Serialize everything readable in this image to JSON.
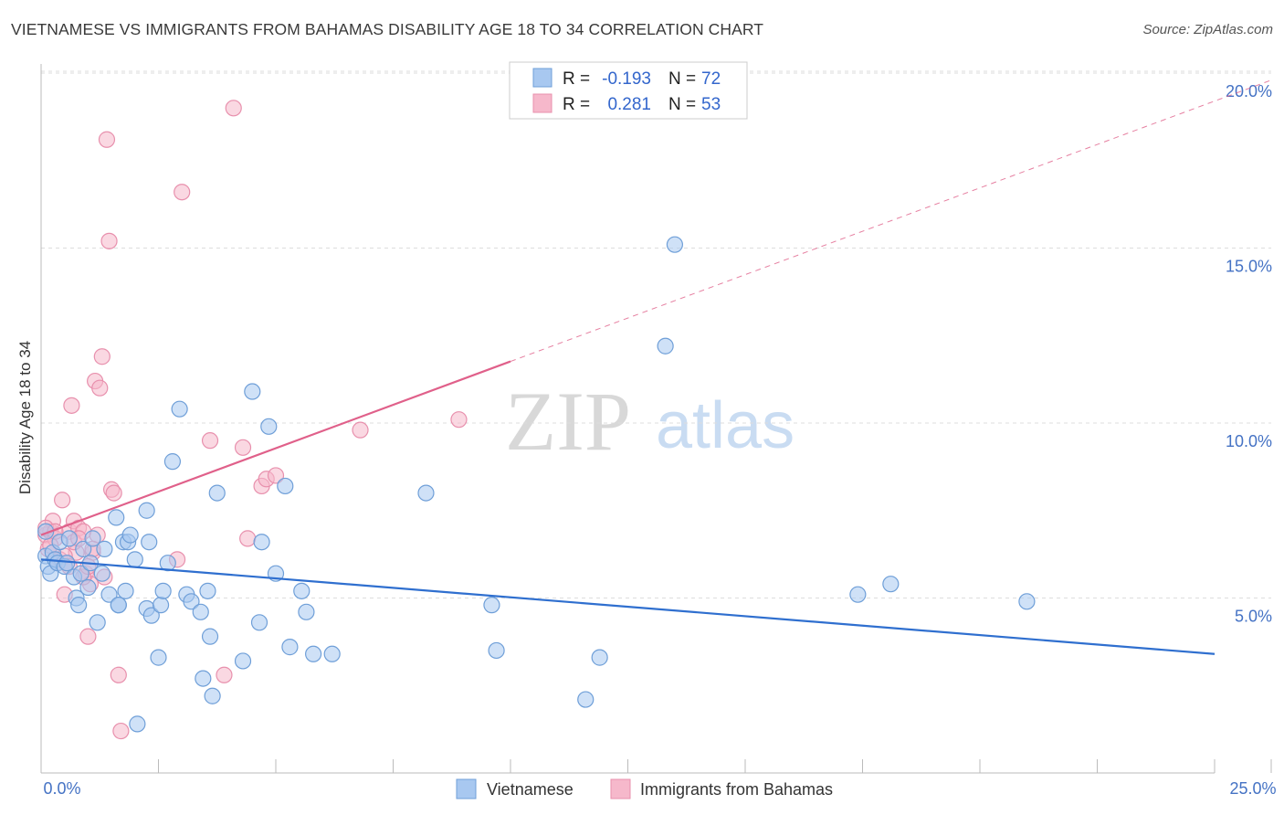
{
  "header": {
    "title": "VIETNAMESE VS IMMIGRANTS FROM BAHAMAS DISABILITY AGE 18 TO 34 CORRELATION CHART",
    "source": "Source: ZipAtlas.com"
  },
  "watermark": {
    "zip": "ZIP",
    "atlas": "atlas"
  },
  "colors": {
    "blue_fill": "#a8c8f0",
    "blue_stroke": "#6f9fd8",
    "blue_line": "#2f6fcf",
    "pink_fill": "#f6b8cb",
    "pink_stroke": "#e890ad",
    "pink_line": "#e0608a"
  },
  "chart_data": {
    "type": "scatter",
    "title": "VIETNAMESE VS IMMIGRANTS FROM BAHAMAS DISABILITY AGE 18 TO 34 CORRELATION CHART",
    "xlabel": "",
    "ylabel": "Disability Age 18 to 34",
    "xlim": [
      0,
      25
    ],
    "ylim": [
      0,
      20
    ],
    "x_tick_labels": [
      "0.0%",
      "25.0%"
    ],
    "y_ticks": [
      5,
      10,
      15,
      20
    ],
    "y_tick_labels": [
      "5.0%",
      "10.0%",
      "15.0%",
      "20.0%"
    ],
    "legend": [
      {
        "label": "Vietnamese",
        "r_label": "R =",
        "r_value": "-0.193",
        "n_label": "N =",
        "n_value": "72"
      },
      {
        "label": "Immigrants from Bahamas",
        "r_label": "R =",
        "r_value": "0.281",
        "n_label": "N =",
        "n_value": "53"
      }
    ],
    "series": [
      {
        "name": "Vietnamese",
        "trend": {
          "x0": 0,
          "y0": 6.1,
          "x1": 25,
          "y1": 3.4,
          "dashed_from": null
        },
        "points": [
          [
            0.1,
            6.2
          ],
          [
            0.15,
            5.9
          ],
          [
            0.2,
            5.7
          ],
          [
            0.25,
            6.3
          ],
          [
            0.3,
            6.1
          ],
          [
            0.35,
            6.0
          ],
          [
            0.4,
            6.6
          ],
          [
            0.5,
            5.9
          ],
          [
            0.55,
            6.0
          ],
          [
            0.6,
            6.7
          ],
          [
            0.7,
            5.6
          ],
          [
            0.75,
            5.0
          ],
          [
            0.8,
            4.8
          ],
          [
            0.85,
            5.7
          ],
          [
            0.9,
            6.4
          ],
          [
            1.0,
            5.3
          ],
          [
            1.05,
            6.0
          ],
          [
            1.1,
            6.7
          ],
          [
            1.2,
            4.3
          ],
          [
            1.3,
            5.7
          ],
          [
            1.35,
            6.4
          ],
          [
            1.45,
            5.1
          ],
          [
            1.6,
            7.3
          ],
          [
            1.65,
            4.8
          ],
          [
            1.75,
            6.6
          ],
          [
            1.8,
            5.2
          ],
          [
            1.85,
            6.6
          ],
          [
            1.9,
            6.8
          ],
          [
            2.05,
            1.4
          ],
          [
            2.25,
            4.7
          ],
          [
            2.25,
            7.5
          ],
          [
            2.3,
            6.6
          ],
          [
            2.35,
            4.5
          ],
          [
            2.5,
            3.3
          ],
          [
            2.55,
            4.8
          ],
          [
            2.6,
            5.2
          ],
          [
            2.7,
            6.0
          ],
          [
            2.8,
            8.9
          ],
          [
            2.95,
            10.4
          ],
          [
            3.1,
            5.1
          ],
          [
            3.2,
            4.9
          ],
          [
            3.4,
            4.6
          ],
          [
            3.45,
            2.7
          ],
          [
            3.55,
            5.2
          ],
          [
            3.6,
            3.9
          ],
          [
            3.65,
            2.2
          ],
          [
            3.75,
            8.0
          ],
          [
            4.3,
            3.2
          ],
          [
            4.5,
            10.9
          ],
          [
            4.65,
            4.3
          ],
          [
            4.7,
            6.6
          ],
          [
            4.85,
            9.9
          ],
          [
            5.0,
            5.7
          ],
          [
            5.2,
            8.2
          ],
          [
            5.3,
            3.6
          ],
          [
            5.55,
            5.2
          ],
          [
            5.65,
            4.6
          ],
          [
            5.8,
            3.4
          ],
          [
            6.2,
            3.4
          ],
          [
            8.2,
            8.0
          ],
          [
            9.6,
            4.8
          ],
          [
            9.7,
            3.5
          ],
          [
            11.6,
            2.1
          ],
          [
            11.9,
            3.3
          ],
          [
            13.5,
            15.1
          ],
          [
            13.3,
            12.2
          ],
          [
            17.4,
            5.1
          ],
          [
            18.1,
            5.4
          ],
          [
            21.0,
            4.9
          ],
          [
            0.1,
            6.9
          ],
          [
            1.65,
            4.8
          ],
          [
            2.0,
            6.1
          ]
        ]
      },
      {
        "name": "Immigrants from Bahamas",
        "trend": {
          "x0": 0,
          "y0": 6.8,
          "x1": 25,
          "y1": 19.2,
          "solid_until_x": 10
        },
        "points": [
          [
            0.1,
            6.8
          ],
          [
            0.15,
            6.4
          ],
          [
            0.2,
            6.9
          ],
          [
            0.25,
            7.2
          ],
          [
            0.3,
            6.7
          ],
          [
            0.35,
            6.0
          ],
          [
            0.4,
            6.1
          ],
          [
            0.45,
            7.8
          ],
          [
            0.5,
            5.1
          ],
          [
            0.55,
            6.0
          ],
          [
            0.6,
            6.9
          ],
          [
            0.65,
            10.5
          ],
          [
            0.7,
            7.2
          ],
          [
            0.75,
            6.3
          ],
          [
            0.8,
            7.0
          ],
          [
            0.9,
            6.9
          ],
          [
            0.95,
            5.7
          ],
          [
            1.0,
            3.9
          ],
          [
            1.05,
            5.4
          ],
          [
            1.1,
            6.3
          ],
          [
            1.15,
            11.2
          ],
          [
            1.2,
            6.8
          ],
          [
            1.25,
            11.0
          ],
          [
            1.3,
            11.9
          ],
          [
            1.35,
            5.6
          ],
          [
            1.4,
            18.1
          ],
          [
            1.45,
            15.2
          ],
          [
            1.5,
            8.1
          ],
          [
            1.55,
            8.0
          ],
          [
            1.65,
            2.8
          ],
          [
            1.7,
            1.2
          ],
          [
            2.9,
            6.1
          ],
          [
            3.0,
            16.6
          ],
          [
            3.6,
            9.5
          ],
          [
            3.9,
            2.8
          ],
          [
            4.1,
            19.0
          ],
          [
            4.3,
            9.3
          ],
          [
            4.4,
            6.7
          ],
          [
            4.7,
            8.2
          ],
          [
            4.8,
            8.4
          ],
          [
            5.0,
            8.5
          ],
          [
            6.8,
            9.8
          ],
          [
            8.9,
            10.1
          ],
          [
            0.1,
            7.0
          ],
          [
            0.2,
            6.5
          ],
          [
            0.3,
            6.9
          ],
          [
            0.5,
            6.2
          ],
          [
            0.6,
            5.9
          ],
          [
            0.7,
            6.6
          ],
          [
            0.8,
            6.7
          ],
          [
            0.9,
            5.6
          ],
          [
            1.0,
            5.9
          ],
          [
            1.1,
            6.4
          ]
        ]
      }
    ]
  }
}
